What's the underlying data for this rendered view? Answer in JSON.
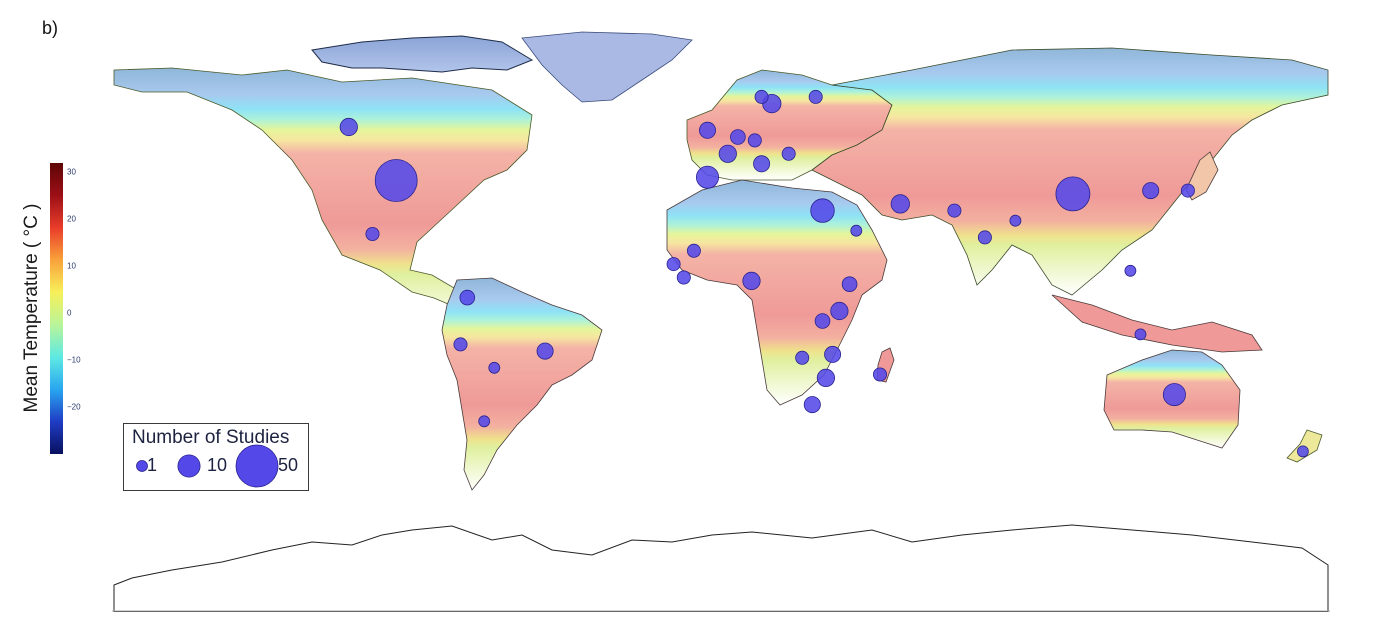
{
  "panel_label": "b)",
  "colorbar": {
    "title": "Mean Temperature ( °C )",
    "ticks": [
      30,
      20,
      10,
      0,
      -10,
      -20
    ],
    "min": -30,
    "max": 32,
    "colors": [
      "#08105e",
      "#1f3cc4",
      "#29a6f0",
      "#5ee9e3",
      "#b9f59a",
      "#f7f05a",
      "#f9a23a",
      "#e93c2a",
      "#9c0f16",
      "#5e0606"
    ]
  },
  "legend": {
    "title": "Number of Studies",
    "items": [
      {
        "label": "1",
        "value": 1
      },
      {
        "label": "10",
        "value": 10
      },
      {
        "label": "50",
        "value": 50
      }
    ],
    "marker_color": "#5449e8",
    "marker_edge": "#2a238f"
  },
  "chart_data": {
    "type": "scatter",
    "title": "",
    "size_meaning": "Number of Studies",
    "colorbar_label": "Mean Temperature ( °C )",
    "projection": "equirectangular",
    "series": [
      {
        "name": "Number of Studies",
        "points": [
          {
            "lon": -96,
            "lat": 39,
            "studies": 50
          },
          {
            "lon": -110,
            "lat": 55,
            "studies": 5
          },
          {
            "lon": -103,
            "lat": 23,
            "studies": 2
          },
          {
            "lon": -75,
            "lat": 4,
            "studies": 3
          },
          {
            "lon": -77,
            "lat": -10,
            "studies": 2
          },
          {
            "lon": -52,
            "lat": -12,
            "studies": 4
          },
          {
            "lon": -67,
            "lat": -17,
            "studies": 1
          },
          {
            "lon": -70,
            "lat": -33,
            "studies": 1
          },
          {
            "lon": 15,
            "lat": 62,
            "studies": 6
          },
          {
            "lon": 12,
            "lat": 64,
            "studies": 2
          },
          {
            "lon": 28,
            "lat": 64,
            "studies": 2
          },
          {
            "lon": -4,
            "lat": 54,
            "studies": 4
          },
          {
            "lon": 5,
            "lat": 52,
            "studies": 3
          },
          {
            "lon": 10,
            "lat": 51,
            "studies": 2
          },
          {
            "lon": 2,
            "lat": 47,
            "studies": 5
          },
          {
            "lon": -4,
            "lat": 40,
            "studies": 10
          },
          {
            "lon": 12,
            "lat": 44,
            "studies": 4
          },
          {
            "lon": 20,
            "lat": 47,
            "studies": 2
          },
          {
            "lon": 30,
            "lat": 30,
            "studies": 12
          },
          {
            "lon": 40,
            "lat": 24,
            "studies": 1
          },
          {
            "lon": 53,
            "lat": 32,
            "studies": 6
          },
          {
            "lon": 69,
            "lat": 30,
            "studies": 2
          },
          {
            "lon": 78,
            "lat": 22,
            "studies": 2
          },
          {
            "lon": 87,
            "lat": 27,
            "studies": 1
          },
          {
            "lon": 104,
            "lat": 35,
            "studies": 30
          },
          {
            "lon": 127,
            "lat": 36,
            "studies": 4
          },
          {
            "lon": 138,
            "lat": 36,
            "studies": 2
          },
          {
            "lon": 134,
            "lat": -25,
            "studies": 10
          },
          {
            "lon": 172,
            "lat": -42,
            "studies": 1
          },
          {
            "lon": -14,
            "lat": 14,
            "studies": 2
          },
          {
            "lon": -8,
            "lat": 18,
            "studies": 2
          },
          {
            "lon": -11,
            "lat": 10,
            "studies": 2
          },
          {
            "lon": 9,
            "lat": 9,
            "studies": 5
          },
          {
            "lon": 38,
            "lat": 8,
            "studies": 3
          },
          {
            "lon": 35,
            "lat": 0,
            "studies": 5
          },
          {
            "lon": 30,
            "lat": -3,
            "studies": 3
          },
          {
            "lon": 33,
            "lat": -13,
            "studies": 4
          },
          {
            "lon": 24,
            "lat": -14,
            "studies": 2
          },
          {
            "lon": 31,
            "lat": -20,
            "studies": 5
          },
          {
            "lon": 27,
            "lat": -28,
            "studies": 4
          },
          {
            "lon": 47,
            "lat": -19,
            "studies": 2
          },
          {
            "lon": 121,
            "lat": 12,
            "studies": 1
          },
          {
            "lon": 124,
            "lat": -7,
            "studies": 1
          }
        ]
      }
    ],
    "xlim": [
      -180,
      180
    ],
    "ylim": [
      -90,
      84
    ]
  }
}
